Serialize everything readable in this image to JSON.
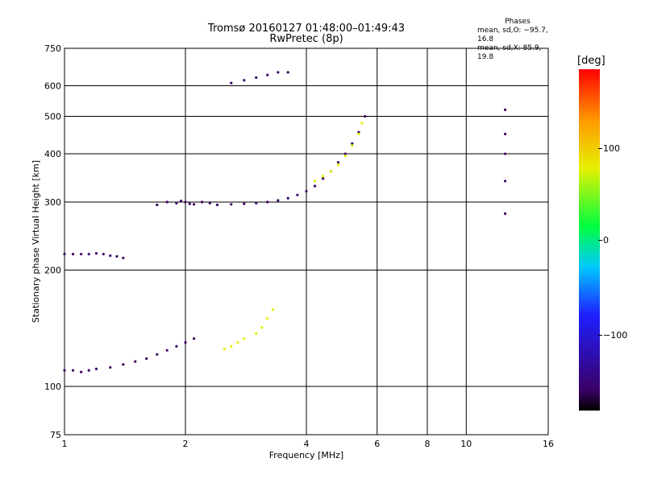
{
  "title": "Tromsø 20160127 01:48:00–01:49:43",
  "subtitle": "RwPretec (8p)",
  "stats": {
    "heading": "Phases",
    "line1": "mean, sd,O: −95.7, 16.8",
    "line2": "mean, sd,X:  85.9, 19.8"
  },
  "colorbar": {
    "unit": "[deg]",
    "ticks": [
      "100",
      "0",
      "−100"
    ],
    "tick_values": [
      100,
      0,
      -100
    ],
    "range": [
      -180,
      180
    ]
  },
  "chart_data": {
    "type": "scatter",
    "title": "Tromsø 20160127 01:48:00–01:49:43",
    "subtitle": "RwPretec (8p)",
    "xlabel": "Frequency [MHz]",
    "ylabel": "Stationary phase Virtual Height [km]",
    "x_scale": "log",
    "y_scale": "log",
    "xlim": [
      1,
      16
    ],
    "ylim": [
      75,
      750
    ],
    "x_ticks": [
      1,
      2,
      4,
      6,
      8,
      10,
      16
    ],
    "x_tick_labels": [
      "1",
      "2",
      "4",
      "6",
      "8",
      "10",
      "16"
    ],
    "y_ticks": [
      75,
      100,
      200,
      300,
      400,
      500,
      600,
      750
    ],
    "y_tick_labels": [
      "75",
      "100",
      "200",
      "300",
      "400",
      "500",
      "600",
      "750"
    ],
    "grid": true,
    "color_encoding": "phase [deg]",
    "series": [
      {
        "x": [
          1.0,
          1.05,
          1.1,
          1.15,
          1.2,
          1.3,
          1.4,
          1.5,
          1.6,
          1.7,
          1.8,
          1.9,
          2.0,
          2.1
        ],
        "y": [
          110,
          110,
          109,
          110,
          111,
          112,
          114,
          116,
          118,
          121,
          124,
          127,
          130,
          133
        ],
        "phase": -100
      },
      {
        "x": [
          2.4,
          2.6,
          2.8,
          3.0,
          3.2,
          3.4,
          3.6,
          3.8,
          4.0,
          4.2,
          4.4,
          4.6,
          4.8,
          5.0,
          5.2,
          5.4,
          5.6
        ],
        "y": [
          295,
          296,
          297,
          298,
          300,
          303,
          307,
          313,
          320,
          330,
          345,
          360,
          380,
          400,
          425,
          455,
          500
        ],
        "phase": -95
      },
      {
        "x": [
          4.2,
          4.4,
          4.6,
          4.8,
          5.0,
          5.2,
          5.4,
          5.5
        ],
        "y": [
          340,
          350,
          360,
          375,
          395,
          420,
          450,
          480
        ],
        "phase": 95
      },
      {
        "x": [
          2.5,
          2.6,
          2.7,
          2.8,
          3.0,
          3.1,
          3.2,
          3.3
        ],
        "y": [
          125,
          127,
          130,
          133,
          137,
          142,
          150,
          158
        ],
        "phase": 85
      },
      {
        "x": [
          1.0,
          1.05,
          1.1,
          1.15,
          1.2,
          1.25,
          1.3,
          1.35,
          1.4
        ],
        "y": [
          220,
          220,
          220,
          220,
          221,
          220,
          218,
          217,
          215
        ],
        "phase": -100
      },
      {
        "x": [
          1.7,
          1.8,
          1.9,
          1.95,
          2.0,
          2.05,
          2.1,
          2.2,
          2.3
        ],
        "y": [
          295,
          300,
          298,
          302,
          300,
          297,
          296,
          300,
          298
        ],
        "phase": -100
      },
      {
        "x": [
          2.6,
          2.8,
          3.0,
          3.2,
          3.4,
          3.6
        ],
        "y": [
          610,
          620,
          630,
          640,
          650,
          650
        ],
        "phase": -100
      },
      {
        "x": [
          12.5,
          12.5,
          12.5,
          12.5,
          12.5
        ],
        "y": [
          280,
          340,
          400,
          450,
          520
        ],
        "phase": -150
      }
    ]
  }
}
